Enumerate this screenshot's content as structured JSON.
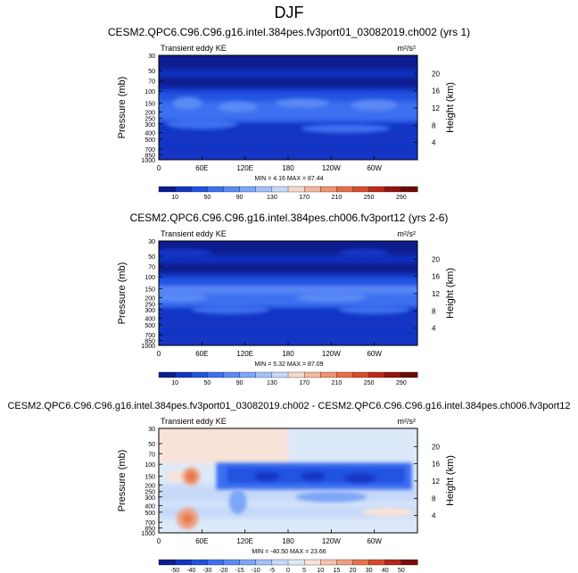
{
  "page_title": "DJF",
  "chart_data": [
    {
      "type": "heatmap",
      "title": "CESM2.QPC6.C96.C96.g16.intel.384pes.fv3port01_03082019.ch002 (yrs 1)",
      "variable": "Transient eddy KE",
      "units": "m²/s²",
      "ylabel": "Pressure (mb)",
      "ylabel_right": "Height (km)",
      "x_ticks": [
        "0",
        "60E",
        "120E",
        "180",
        "120W",
        "60W"
      ],
      "y_ticks": [
        "30",
        "50",
        "70",
        "100",
        "150",
        "200",
        "250",
        "300",
        "400",
        "500",
        "700",
        "850",
        "1000"
      ],
      "y_right_ticks": [
        "20",
        "16",
        "12",
        "8",
        "4"
      ],
      "colorbar_labels": [
        "10",
        "50",
        "90",
        "130",
        "170",
        "210",
        "250",
        "290"
      ],
      "colorbar_levels": [
        10,
        30,
        50,
        70,
        90,
        110,
        130,
        150,
        170,
        190,
        210,
        230,
        250,
        270,
        290
      ],
      "colorbar_colors": [
        "#0a1d8f",
        "#1235c4",
        "#2152e0",
        "#3d6ff0",
        "#5b8af5",
        "#7ea6f7",
        "#a4c1f8",
        "#c7d9f9",
        "#f5d8cc",
        "#f3b79f",
        "#ee9370",
        "#e56e46",
        "#d84b2a",
        "#bd2a18",
        "#91140e",
        "#6b0a08"
      ],
      "stats_text": "MIN =  4.16  MAX = 87.44",
      "min": 4.16,
      "max": 87.44
    },
    {
      "type": "heatmap",
      "title": "CESM2.QPC6.C96.C96.g16.intel.384pes.ch006.fv3port12 (yrs 2-6)",
      "variable": "Transient eddy KE",
      "units": "m²/s²",
      "ylabel": "Pressure (mb)",
      "ylabel_right": "Height (km)",
      "x_ticks": [
        "0",
        "60E",
        "120E",
        "180",
        "120W",
        "60W"
      ],
      "y_ticks": [
        "30",
        "50",
        "70",
        "100",
        "150",
        "200",
        "250",
        "300",
        "400",
        "500",
        "700",
        "850",
        "1000"
      ],
      "y_right_ticks": [
        "20",
        "16",
        "12",
        "8",
        "4"
      ],
      "colorbar_labels": [
        "10",
        "50",
        "90",
        "130",
        "170",
        "210",
        "250",
        "290"
      ],
      "colorbar_levels": [
        10,
        30,
        50,
        70,
        90,
        110,
        130,
        150,
        170,
        190,
        210,
        230,
        250,
        270,
        290
      ],
      "colorbar_colors": [
        "#0a1d8f",
        "#1235c4",
        "#2152e0",
        "#3d6ff0",
        "#5b8af5",
        "#7ea6f7",
        "#a4c1f8",
        "#c7d9f9",
        "#f5d8cc",
        "#f3b79f",
        "#ee9370",
        "#e56e46",
        "#d84b2a",
        "#bd2a18",
        "#91140e",
        "#6b0a08"
      ],
      "stats_text": "MIN =  5.32  MAX = 87.09",
      "min": 5.32,
      "max": 87.09
    },
    {
      "type": "heatmap",
      "title": "CESM2.QPC6.C96.C96.g16.intel.384pes.fv3port01_03082019.ch002 - CESM2.QPC6.C96.C96.g16.intel.384pes.ch006.fv3port12",
      "variable": "Transient eddy KE",
      "units": "m²/s²",
      "ylabel": "Pressure (mb)",
      "ylabel_right": "Height (km)",
      "x_ticks": [
        "0",
        "60E",
        "120E",
        "180",
        "120W",
        "60W"
      ],
      "y_ticks": [
        "30",
        "50",
        "70",
        "100",
        "150",
        "200",
        "250",
        "300",
        "400",
        "500",
        "700",
        "850",
        "1000"
      ],
      "y_right_ticks": [
        "20",
        "16",
        "12",
        "8",
        "4"
      ],
      "colorbar_labels": [
        "-50",
        "-40",
        "-30",
        "-20",
        "-15",
        "-10",
        "-5",
        "0",
        "5",
        "10",
        "15",
        "20",
        "30",
        "40",
        "50"
      ],
      "colorbar_levels": [
        -50,
        -40,
        -30,
        -20,
        -15,
        -10,
        -5,
        0,
        5,
        10,
        15,
        20,
        30,
        40,
        50
      ],
      "colorbar_colors": [
        "#0a1d8f",
        "#1235c4",
        "#2152e0",
        "#3d6ff0",
        "#5b8af5",
        "#7ea6f7",
        "#a4c1f8",
        "#c7d9f9",
        "#dce9f9",
        "#f8e3d8",
        "#f5c3ad",
        "#ef9f7e",
        "#e6734c",
        "#d74a2b",
        "#b8261a",
        "#7d0d0a"
      ],
      "stats_text": "MIN = -40.50  MAX = 23.66",
      "min": -40.5,
      "max": 23.66
    }
  ]
}
